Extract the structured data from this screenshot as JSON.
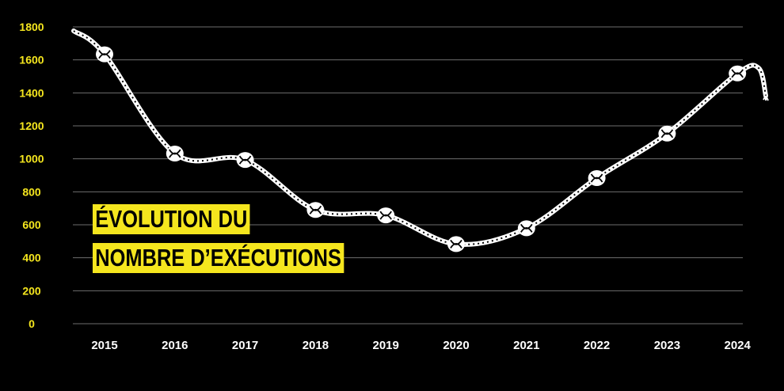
{
  "colors": {
    "background": "#000000",
    "accent": "#f5e61e",
    "rope": "#ffffff",
    "grid": "#6e6e6e"
  },
  "title": {
    "line1": "ÉVOLUTION DU",
    "line2": "NOMBRE D’EXÉCUTIONS"
  },
  "chart_data": {
    "type": "line",
    "title": "ÉVOLUTION DU NOMBRE D’EXÉCUTIONS",
    "xlabel": "",
    "ylabel": "",
    "categories": [
      "2015",
      "2016",
      "2017",
      "2018",
      "2019",
      "2020",
      "2021",
      "2022",
      "2023",
      "2024"
    ],
    "values": [
      1634,
      1032,
      993,
      690,
      657,
      483,
      579,
      883,
      1153,
      1518
    ],
    "ylim": [
      0,
      1800
    ],
    "yticks": [
      0,
      200,
      400,
      600,
      800,
      1000,
      1200,
      1400,
      1600,
      1800
    ],
    "grid": true,
    "marker": "knot",
    "line_style": "rope"
  }
}
